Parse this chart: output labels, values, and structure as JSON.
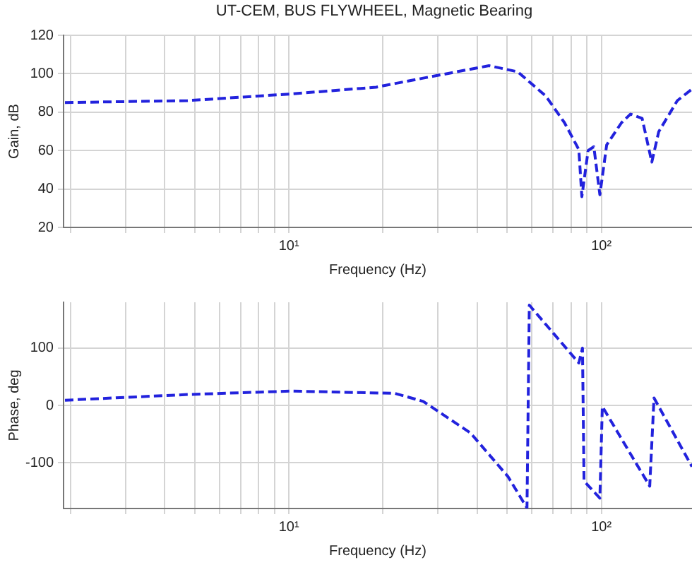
{
  "chart_data": [
    {
      "type": "line",
      "title": "UT-CEM, BUS FLYWHEEL, Magnetic Bearing",
      "xlabel": "Frequency (Hz)",
      "ylabel": "Gain, dB",
      "log": "x",
      "grid": true,
      "legend": false,
      "marker": "none",
      "line_style": "dashed",
      "xlim": [
        1.9,
        195
      ],
      "ylim": [
        20,
        120
      ],
      "yticks": [
        20,
        40,
        60,
        80,
        100,
        120
      ],
      "xticks": [
        {
          "value": 2,
          "label": null
        },
        {
          "value": 3,
          "label": null
        },
        {
          "value": 4,
          "label": null
        },
        {
          "value": 5,
          "label": null
        },
        {
          "value": 6,
          "label": null
        },
        {
          "value": 7,
          "label": null
        },
        {
          "value": 8,
          "label": null
        },
        {
          "value": 9,
          "label": null
        },
        {
          "value": 10,
          "label": "10¹"
        },
        {
          "value": 20,
          "label": null
        },
        {
          "value": 30,
          "label": null
        },
        {
          "value": 40,
          "label": null
        },
        {
          "value": 50,
          "label": null
        },
        {
          "value": 60,
          "label": null
        },
        {
          "value": 70,
          "label": null
        },
        {
          "value": 80,
          "label": null
        },
        {
          "value": 90,
          "label": null
        },
        {
          "value": 100,
          "label": "10²"
        }
      ],
      "x": [
        1.92,
        4.74,
        10.2,
        19,
        26.9,
        43.7,
        54,
        66.4,
        76.2,
        84.7,
        86.6,
        90.7,
        94.6,
        98.9,
        104,
        116,
        124,
        135,
        145,
        152.6,
        175,
        195
      ],
      "series": [
        {
          "color": "#2222dd",
          "values": [
            85,
            86,
            89.5,
            93,
            97.7,
            104.2,
            101,
            88.4,
            74.5,
            60.5,
            36,
            60,
            62,
            37,
            63,
            74.5,
            79,
            76.8,
            54,
            69.8,
            86,
            92
          ]
        }
      ]
    },
    {
      "type": "line",
      "xlabel": "Frequency (Hz)",
      "ylabel": "Phase, deg",
      "log": "x",
      "grid": true,
      "legend": false,
      "marker": "none",
      "line_style": "dashed",
      "xlim": [
        1.9,
        195
      ],
      "ylim": [
        -180,
        180
      ],
      "yticks": [
        -100,
        0,
        100
      ],
      "xticks": [
        {
          "value": 2,
          "label": null
        },
        {
          "value": 3,
          "label": null
        },
        {
          "value": 4,
          "label": null
        },
        {
          "value": 5,
          "label": null
        },
        {
          "value": 6,
          "label": null
        },
        {
          "value": 7,
          "label": null
        },
        {
          "value": 8,
          "label": null
        },
        {
          "value": 9,
          "label": null
        },
        {
          "value": 10,
          "label": "10¹"
        },
        {
          "value": 20,
          "label": null
        },
        {
          "value": 30,
          "label": null
        },
        {
          "value": 40,
          "label": null
        },
        {
          "value": 50,
          "label": null
        },
        {
          "value": 60,
          "label": null
        },
        {
          "value": 70,
          "label": null
        },
        {
          "value": 80,
          "label": null
        },
        {
          "value": 90,
          "label": null
        },
        {
          "value": 100,
          "label": "10²"
        }
      ],
      "x": [
        1.92,
        4.74,
        10.2,
        21.8,
        26.9,
        38.1,
        50.2,
        57.8,
        58.8,
        84.7,
        87,
        88,
        98.9,
        100.7,
        142.8,
        147.4,
        195
      ],
      "series": [
        {
          "color": "#2222dd",
          "values": [
            9,
            19,
            25,
            21,
            7,
            -48,
            -124,
            -179,
            175,
            74,
            100,
            -132,
            -162,
            -2,
            -141,
            13,
            -107
          ]
        }
      ]
    }
  ]
}
